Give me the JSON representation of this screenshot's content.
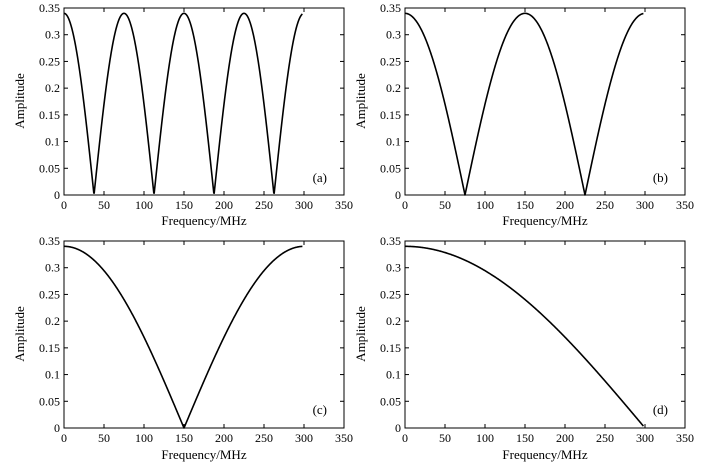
{
  "chart_data": [
    {
      "type": "line",
      "panel_label": "(a)",
      "xlabel": "Frequency/MHz",
      "ylabel": "Amplitude",
      "xlim": [
        0,
        350
      ],
      "ylim": [
        0,
        0.35
      ],
      "xticks": [
        "0",
        "50",
        "100",
        "150",
        "200",
        "250",
        "300",
        "350"
      ],
      "yticks": [
        "0",
        "0.05",
        "0.1",
        "0.15",
        "0.2",
        "0.25",
        "0.3",
        "0.35"
      ],
      "series": [
        {
          "x_range": [
            0,
            298
          ],
          "peak": 0.34,
          "null_period_mhz": 75,
          "first_null_mhz": 37.5
        }
      ]
    },
    {
      "type": "line",
      "panel_label": "(b)",
      "xlabel": "Frequency/MHz",
      "ylabel": "Amplitude",
      "xlim": [
        0,
        350
      ],
      "ylim": [
        0,
        0.35
      ],
      "xticks": [
        "0",
        "50",
        "100",
        "150",
        "200",
        "250",
        "300",
        "350"
      ],
      "yticks": [
        "0",
        "0.05",
        "0.1",
        "0.15",
        "0.2",
        "0.25",
        "0.3",
        "0.35"
      ],
      "series": [
        {
          "x_range": [
            0,
            298
          ],
          "peak": 0.34,
          "null_period_mhz": 150,
          "first_null_mhz": 75
        }
      ]
    },
    {
      "type": "line",
      "panel_label": "(c)",
      "xlabel": "Frequency/MHz",
      "ylabel": "Amplitude",
      "xlim": [
        0,
        350
      ],
      "ylim": [
        0,
        0.35
      ],
      "xticks": [
        "0",
        "50",
        "100",
        "150",
        "200",
        "250",
        "300",
        "350"
      ],
      "yticks": [
        "0",
        "0.05",
        "0.1",
        "0.15",
        "0.2",
        "0.25",
        "0.3",
        "0.35"
      ],
      "series": [
        {
          "x_range": [
            0,
            298
          ],
          "peak": 0.34,
          "null_period_mhz": 300,
          "first_null_mhz": 150
        }
      ]
    },
    {
      "type": "line",
      "panel_label": "(d)",
      "xlabel": "Frequency/MHz",
      "ylabel": "Amplitude",
      "xlim": [
        0,
        350
      ],
      "ylim": [
        0,
        0.35
      ],
      "xticks": [
        "0",
        "50",
        "100",
        "150",
        "200",
        "250",
        "300",
        "350"
      ],
      "yticks": [
        "0",
        "0.05",
        "0.1",
        "0.15",
        "0.2",
        "0.25",
        "0.3",
        "0.35"
      ],
      "series": [
        {
          "x_range": [
            0,
            298
          ],
          "peak": 0.34,
          "null_period_mhz": 600,
          "first_null_mhz": 300
        }
      ]
    }
  ]
}
